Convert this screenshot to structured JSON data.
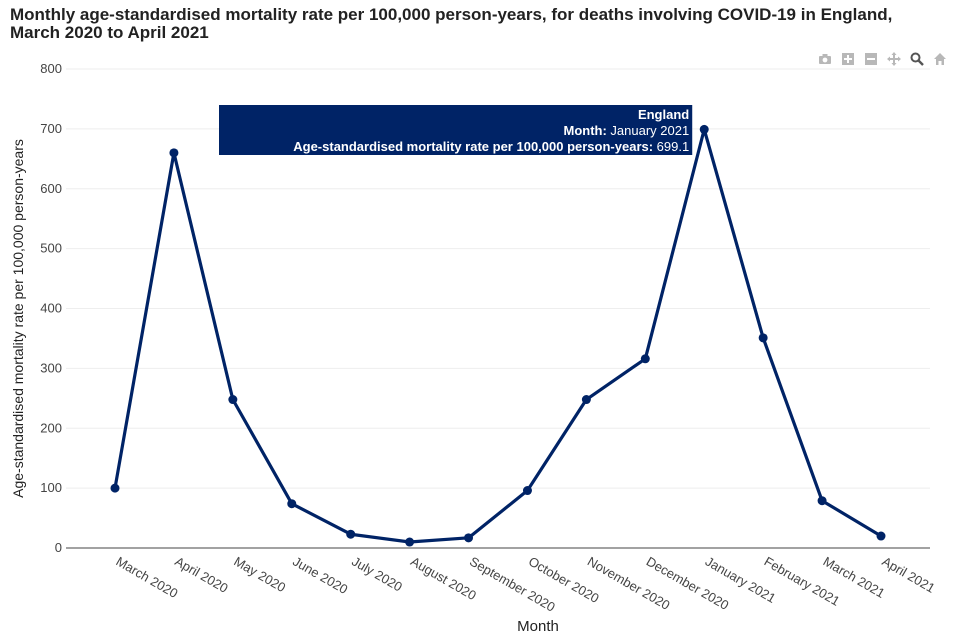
{
  "chart_data": {
    "type": "line",
    "title": "Monthly age-standardised mortality rate per 100,000 person-years, for deaths involving COVID-19 in England, March 2020 to April 2021",
    "xlabel": "Month",
    "ylabel": "Age-standardised mortality rate per 100,000 person-years",
    "ylim": [
      0,
      800
    ],
    "yticks": [
      0,
      100,
      200,
      300,
      400,
      500,
      600,
      700,
      800
    ],
    "grid": true,
    "categories": [
      "March 2020",
      "April 2020",
      "May 2020",
      "June 2020",
      "July 2020",
      "August 2020",
      "September 2020",
      "October 2020",
      "November 2020",
      "December 2020",
      "January 2021",
      "February 2021",
      "March 2021",
      "April 2021"
    ],
    "series": [
      {
        "name": "England",
        "color": "#002366",
        "values": [
          100,
          660,
          248,
          74,
          23,
          10,
          17,
          96,
          248,
          316,
          699.1,
          351,
          79,
          20
        ]
      }
    ],
    "tooltip": {
      "series": "England",
      "month_label": "Month:",
      "month_value": "January 2021",
      "rate_label": "Age-standardised mortality rate per 100,000 person-years:",
      "rate_value": "699.1",
      "point_index": 10
    }
  },
  "modebar": {
    "icons": [
      "camera-icon",
      "zoom-in-icon",
      "zoom-out-icon",
      "pan-icon",
      "zoom-icon",
      "home-icon"
    ],
    "color": "#b8b8b8"
  }
}
